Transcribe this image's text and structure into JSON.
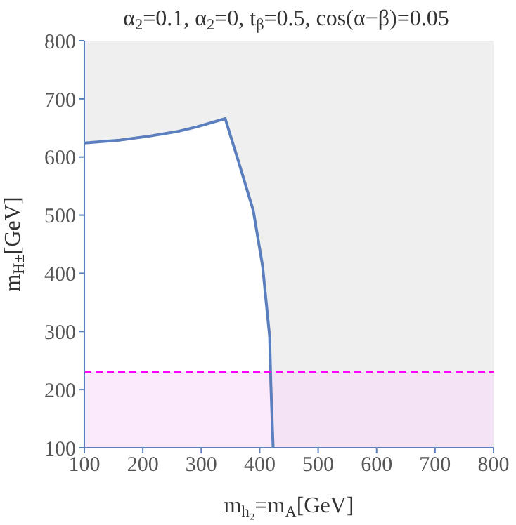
{
  "chart_data": {
    "type": "area",
    "title": "α$_{2}$=0.1, α$_{2}$=0, t$_{β}$=0.5, cos(α−β)=0.05",
    "xlabel": "m$_{h₂}$=m$_{A}$[GeV]",
    "ylabel": "m$_{H±}$[GeV]",
    "series": [
      {
        "color": "#5b7fbe",
        "x": [
          100,
          160,
          212,
          260,
          293,
          341,
          365,
          389,
          405,
          417,
          419,
          423
        ],
        "values": [
          624,
          629,
          636,
          644,
          652,
          666,
          588,
          508,
          412,
          291,
          212,
          100
        ]
      }
    ],
    "xlim": [
      100,
      800
    ],
    "ylim": [
      100,
      800
    ],
    "xticks": [
      100,
      200,
      300,
      400,
      500,
      600,
      700,
      800
    ],
    "yticks": [
      100,
      200,
      300,
      400,
      500,
      600,
      700,
      800
    ],
    "bands": [
      {
        "axis": "x",
        "from": 100,
        "to": 800,
        "color": "#efefef"
      },
      {
        "axis": "y",
        "from": 100,
        "to": 231,
        "color": "#f8d8f8"
      }
    ],
    "ref_lines": [
      {
        "axis": "y",
        "value": 231,
        "color": "#ff00ff",
        "line_style": "dashed"
      }
    ]
  }
}
